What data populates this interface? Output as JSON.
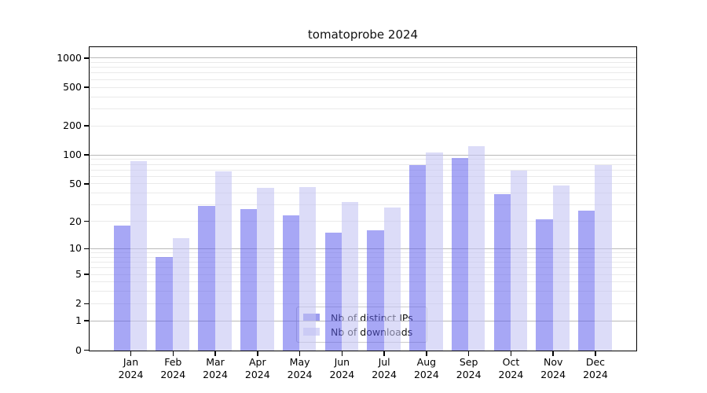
{
  "chart_data": {
    "type": "bar",
    "title": "tomatoprobe 2024",
    "yscale": "symlog",
    "grid": "on",
    "ylim": [
      0,
      1100
    ],
    "yticks": [
      1000,
      500,
      200,
      100,
      50,
      20,
      10,
      5,
      2,
      1,
      0
    ],
    "minor_gridline_values": [
      2,
      3,
      4,
      5,
      6,
      7,
      8,
      9,
      20,
      30,
      40,
      50,
      60,
      70,
      80,
      90,
      200,
      300,
      400,
      500,
      600,
      700,
      800,
      900
    ],
    "major_gridline_values": [
      1,
      10,
      100,
      1000
    ],
    "categories": [
      {
        "month": "Jan",
        "year": "2024"
      },
      {
        "month": "Feb",
        "year": "2024"
      },
      {
        "month": "Mar",
        "year": "2024"
      },
      {
        "month": "Apr",
        "year": "2024"
      },
      {
        "month": "May",
        "year": "2024"
      },
      {
        "month": "Jun",
        "year": "2024"
      },
      {
        "month": "Jul",
        "year": "2024"
      },
      {
        "month": "Aug",
        "year": "2024"
      },
      {
        "month": "Sep",
        "year": "2024"
      },
      {
        "month": "Oct",
        "year": "2024"
      },
      {
        "month": "Nov",
        "year": "2024"
      },
      {
        "month": "Dec",
        "year": "2024"
      }
    ],
    "series": [
      {
        "name": "Nb of distinct IPs",
        "fill": "#5f5fed",
        "fill_alpha": 0.55,
        "legend_color": "#9c9cef",
        "values": [
          18,
          8,
          29,
          27,
          23,
          15,
          16,
          78,
          92,
          39,
          21,
          26
        ]
      },
      {
        "name": "Nb of downloads",
        "fill": "#c3c3f3",
        "fill_alpha": 0.58,
        "legend_color": "#d7d7f8",
        "values": [
          85,
          13,
          67,
          45,
          46,
          32,
          28,
          106,
          123,
          68,
          48,
          78
        ]
      }
    ],
    "legend_position": "lower center",
    "colors": {
      "spine": "#000000",
      "major_grid": "#b9b9b9",
      "minor_grid": "#eaeaea",
      "text": "#000000"
    }
  }
}
